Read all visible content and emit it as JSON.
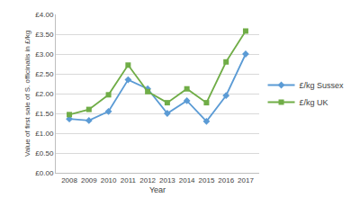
{
  "chart_data": {
    "type": "line",
    "x_label": "Year",
    "y_label": "Value of first sale of S. officinalis in £/kg",
    "categories": [
      "2008",
      "2009",
      "2010",
      "2011",
      "2012",
      "2013",
      "2014",
      "2015",
      "2016",
      "2017"
    ],
    "series": [
      {
        "name": "£/kg Sussex",
        "color": "#5b9bd5",
        "marker": "diamond",
        "line_style": "solid",
        "values": [
          1.36,
          1.32,
          1.55,
          2.35,
          2.12,
          1.5,
          1.82,
          1.3,
          1.95,
          3.0
        ]
      },
      {
        "name": "£/kg UK",
        "color": "#70ad47",
        "marker": "square",
        "line_style": "solid",
        "values": [
          1.47,
          1.6,
          1.97,
          2.72,
          2.05,
          1.77,
          2.12,
          1.77,
          2.8,
          3.58
        ]
      }
    ],
    "ylim": [
      0,
      4
    ],
    "yticks": [
      {
        "value": 0,
        "label": "£0.00"
      },
      {
        "value": 0.5,
        "label": "£0.50"
      },
      {
        "value": 1,
        "label": "£1.00"
      },
      {
        "value": 1.5,
        "label": "£1.50"
      },
      {
        "value": 2,
        "label": "£2.00"
      },
      {
        "value": 2.5,
        "label": "£2.50"
      },
      {
        "value": 3,
        "label": "£3.00"
      },
      {
        "value": 3.5,
        "label": "£3.50"
      },
      {
        "value": 4,
        "label": "£4.00"
      }
    ],
    "grid": true,
    "legend": "right"
  }
}
